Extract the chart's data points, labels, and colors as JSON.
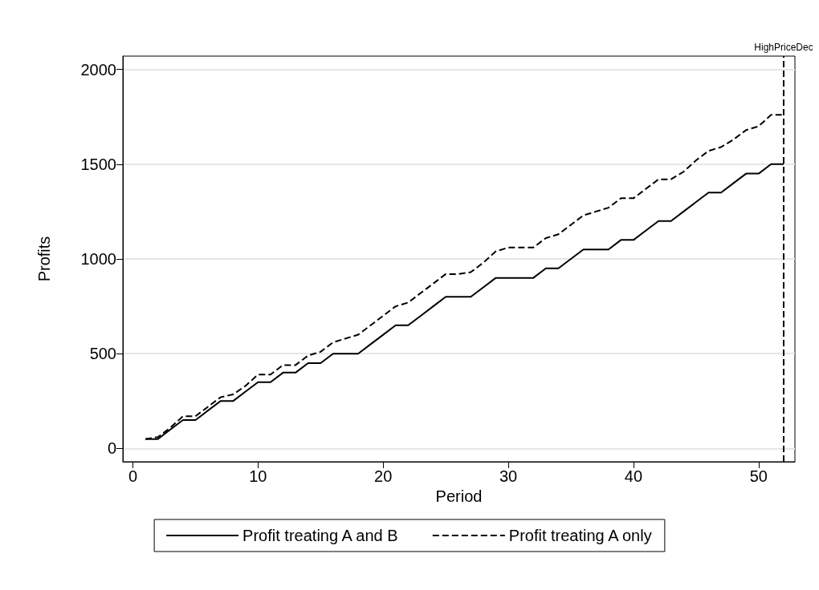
{
  "chart_data": {
    "type": "line",
    "xlabel": "Period",
    "ylabel": "Profits",
    "x": [
      1,
      2,
      3,
      4,
      5,
      6,
      7,
      8,
      9,
      10,
      11,
      12,
      13,
      14,
      15,
      16,
      17,
      18,
      19,
      20,
      21,
      22,
      23,
      24,
      25,
      26,
      27,
      28,
      29,
      30,
      31,
      32,
      33,
      34,
      35,
      36,
      37,
      38,
      39,
      40,
      41,
      42,
      43,
      44,
      45,
      46,
      47,
      48,
      49,
      50,
      51,
      52
    ],
    "series": [
      {
        "name": "Profit treating A and B",
        "color": "#000000",
        "line_style": "solid",
        "values": [
          50,
          50,
          100,
          150,
          150,
          200,
          250,
          250,
          300,
          350,
          350,
          400,
          400,
          450,
          450,
          500,
          500,
          500,
          550,
          600,
          650,
          650,
          700,
          750,
          800,
          800,
          800,
          850,
          900,
          900,
          900,
          900,
          950,
          950,
          1000,
          1050,
          1050,
          1050,
          1100,
          1100,
          1150,
          1200,
          1200,
          1250,
          1300,
          1350,
          1350,
          1400,
          1450,
          1450,
          1500,
          1500
        ]
      },
      {
        "name": "Profit treating A only",
        "color": "#000000",
        "line_style": "dashed",
        "values": [
          50,
          60,
          110,
          170,
          170,
          220,
          270,
          285,
          330,
          390,
          390,
          440,
          440,
          490,
          510,
          560,
          580,
          600,
          650,
          700,
          750,
          770,
          820,
          870,
          920,
          920,
          930,
          980,
          1040,
          1060,
          1060,
          1060,
          1110,
          1130,
          1180,
          1230,
          1250,
          1270,
          1320,
          1320,
          1370,
          1420,
          1420,
          1460,
          1520,
          1570,
          1590,
          1630,
          1680,
          1700,
          1760,
          1760
        ]
      }
    ],
    "xlim": [
      -0.8,
      52.9
    ],
    "xticks": [
      0,
      10,
      20,
      30,
      40,
      50
    ],
    "ylim": [
      -70,
      2070
    ],
    "yticks": [
      0,
      500,
      1000,
      1500,
      2000
    ],
    "ref_lines": [
      {
        "axis": "x",
        "value": 52,
        "label": "HighPriceDec",
        "color": "#000000",
        "line_style": "dashed"
      }
    ],
    "grid": "y",
    "legend": "bottom",
    "marker": "none"
  }
}
